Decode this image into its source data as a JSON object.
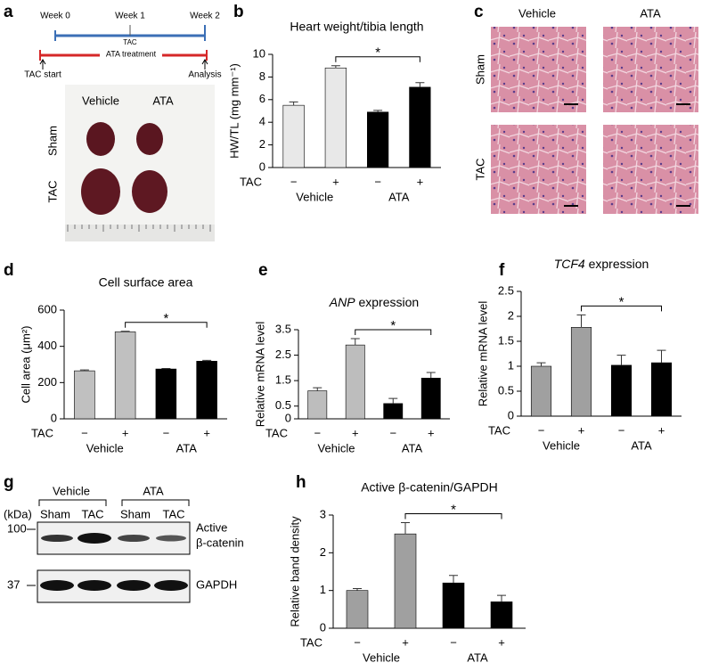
{
  "panel_a": {
    "letter": "a",
    "weeks": [
      "Week 0",
      "Week 1",
      "Week 2"
    ],
    "tac": "TAC",
    "ata": "ATA treatment",
    "start": "TAC start",
    "end": "Analysis",
    "columns": [
      "Vehicle",
      "ATA"
    ],
    "rows": [
      "Sham",
      "TAC"
    ]
  },
  "panel_c": {
    "letter": "c",
    "columns": [
      "Vehicle",
      "ATA"
    ],
    "rows": [
      "Sham",
      "TAC"
    ]
  },
  "panel_g": {
    "letter": "g",
    "groups": [
      "Vehicle",
      "ATA"
    ],
    "unit": "(kDa)",
    "lanes": [
      "Sham",
      "TAC",
      "Sham",
      "TAC"
    ],
    "markers": [
      100,
      37
    ],
    "band1": [
      "Active",
      "β-catenin"
    ],
    "band2": "GAPDH"
  },
  "chart_data": [
    {
      "type": "bar",
      "letter": "b",
      "title": "Heart weight/tibia length",
      "ylabel": "HW/TL (mg mm⁻¹)",
      "x_label": "TAC",
      "categories": [
        "−",
        "+",
        "−",
        "+"
      ],
      "groups": [
        "Vehicle",
        "ATA"
      ],
      "values": [
        5.5,
        8.8,
        4.9,
        7.1
      ],
      "errors": [
        0.3,
        0.2,
        0.15,
        0.4
      ],
      "colors": [
        "#e8e8e8",
        "#e8e8e8",
        "#000000",
        "#000000"
      ],
      "ylim": [
        0,
        10
      ],
      "yticks": [
        0,
        2,
        4,
        6,
        8,
        10
      ],
      "annotation": "*"
    },
    {
      "type": "bar",
      "letter": "d",
      "title": "Cell surface area",
      "ylabel": "Cell area (μm²)",
      "x_label": "TAC",
      "categories": [
        "−",
        "+",
        "−",
        "+"
      ],
      "groups": [
        "Vehicle",
        "ATA"
      ],
      "values": [
        265,
        480,
        275,
        318
      ],
      "errors": [
        5,
        3,
        3,
        5
      ],
      "colors": [
        "#c0c0c0",
        "#c0c0c0",
        "#000000",
        "#000000"
      ],
      "ylim": [
        0,
        600
      ],
      "yticks": [
        0,
        200,
        400,
        600
      ],
      "annotation": "*"
    },
    {
      "type": "bar",
      "letter": "e",
      "title_italic": "ANP",
      "title": "expression",
      "ylabel": "Relative mRNA level",
      "x_label": "TAC",
      "categories": [
        "−",
        "+",
        "−",
        "+"
      ],
      "groups": [
        "Vehicle",
        "ATA"
      ],
      "values": [
        1.1,
        2.9,
        0.6,
        1.6
      ],
      "errors": [
        0.12,
        0.25,
        0.2,
        0.22
      ],
      "colors": [
        "#bdbdbd",
        "#bdbdbd",
        "#000000",
        "#000000"
      ],
      "ylim": [
        0,
        3.5
      ],
      "yticks": [
        0,
        0.5,
        1.5,
        2.5,
        3.5
      ],
      "annotation": "*"
    },
    {
      "type": "bar",
      "letter": "f",
      "title_italic": "TCF4",
      "title": "expression",
      "ylabel": "Relative mRNA level",
      "x_label": "TAC",
      "categories": [
        "−",
        "+",
        "−",
        "+"
      ],
      "groups": [
        "Vehicle",
        "ATA"
      ],
      "values": [
        1.0,
        1.78,
        1.02,
        1.07
      ],
      "errors": [
        0.07,
        0.25,
        0.2,
        0.25
      ],
      "colors": [
        "#a0a0a0",
        "#a0a0a0",
        "#000000",
        "#000000"
      ],
      "ylim": [
        0,
        2.5
      ],
      "yticks": [
        0,
        0.5,
        1,
        1.5,
        2,
        2.5
      ],
      "annotation": "*"
    },
    {
      "type": "bar",
      "letter": "h",
      "title": "Active β-catenin/GAPDH",
      "ylabel": "Relative band density",
      "x_label": "TAC",
      "categories": [
        "−",
        "+",
        "−",
        "+"
      ],
      "groups": [
        "Vehicle",
        "ATA"
      ],
      "values": [
        1.0,
        2.5,
        1.2,
        0.7
      ],
      "errors": [
        0.05,
        0.3,
        0.2,
        0.17
      ],
      "colors": [
        "#a0a0a0",
        "#a0a0a0",
        "#000000",
        "#000000"
      ],
      "ylim": [
        0,
        3
      ],
      "yticks": [
        0,
        1,
        2,
        3
      ],
      "annotation": "*"
    }
  ]
}
